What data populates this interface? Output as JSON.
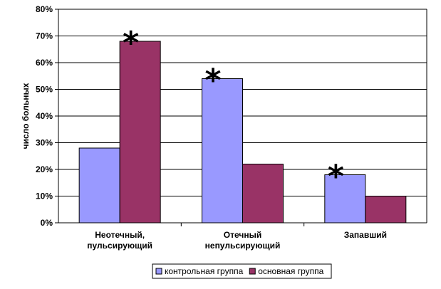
{
  "chart_data": {
    "type": "bar",
    "categories": [
      [
        "Неотечный,",
        "пульсирующий"
      ],
      [
        "Отечный",
        "непульсирующий"
      ],
      [
        "Запавший"
      ]
    ],
    "series": [
      {
        "name": "контрольная группа",
        "values": [
          28,
          54,
          18
        ],
        "color": "#9999ff"
      },
      {
        "name": "основная группа",
        "values": [
          68,
          22,
          10
        ],
        "color": "#993366"
      }
    ],
    "ylabel": "число больных",
    "ylim": [
      0,
      80
    ],
    "yticks": [
      "0%",
      "10%",
      "20%",
      "30%",
      "40%",
      "50%",
      "60%",
      "70%",
      "80%"
    ],
    "grid": true,
    "legend_position": "bottom",
    "annotations": [
      {
        "text": "*",
        "category": 0,
        "series": 1
      },
      {
        "text": "*",
        "category": 1,
        "series": 0
      },
      {
        "text": "*",
        "category": 2,
        "series": 0
      }
    ]
  }
}
